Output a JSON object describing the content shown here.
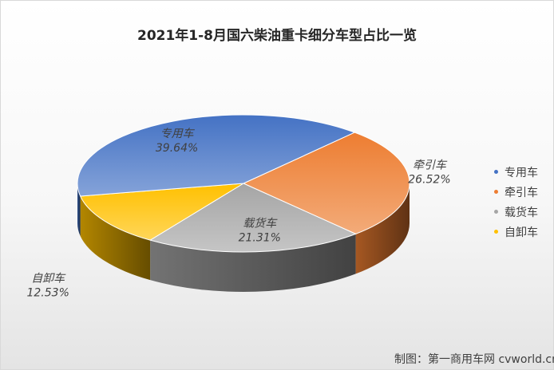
{
  "chart_data": {
    "type": "pie",
    "title": "2021年1-8月国六柴油重卡细分车型占比一览",
    "categories": [
      "牵引车",
      "载货车",
      "自卸车",
      "专用车"
    ],
    "values": [
      26.52,
      21.31,
      12.53,
      39.64
    ],
    "value_labels": [
      "26.52%",
      "21.31%",
      "12.53%",
      "39.64%"
    ],
    "colors": [
      "#ed7d31",
      "#a5a5a5",
      "#ffc000",
      "#4472c4"
    ],
    "legend": {
      "position": "right",
      "entries": [
        "专用车",
        "牵引车",
        "载货车",
        "自卸车"
      ],
      "colors": [
        "#4472c4",
        "#ed7d31",
        "#a5a5a5",
        "#ffc000"
      ]
    },
    "style": "3d"
  },
  "credit": "制图：第一商用车网 cvworld.cn"
}
